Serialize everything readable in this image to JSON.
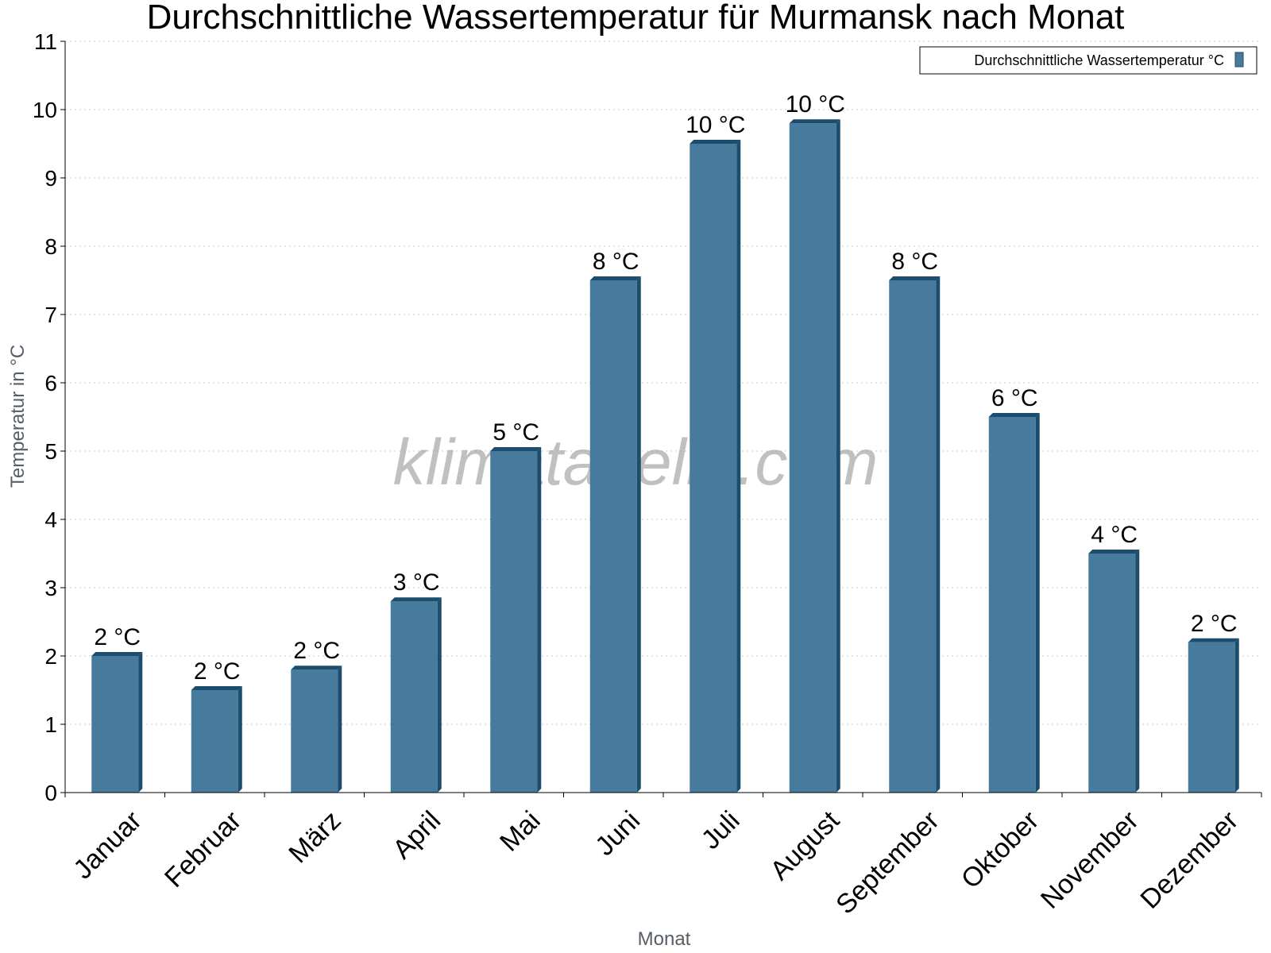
{
  "chart_data": {
    "type": "bar",
    "title": "Durchschnittliche Wassertemperatur für Murmansk nach Monat",
    "xlabel": "Monat",
    "ylabel": "Temperatur in °C",
    "categories": [
      "Januar",
      "Februar",
      "März",
      "April",
      "Mai",
      "Juni",
      "Juli",
      "August",
      "September",
      "Oktober",
      "November",
      "Dezember"
    ],
    "series": [
      {
        "name": "Durchschnittliche Wassertemperatur °C",
        "values": [
          2.0,
          1.5,
          1.8,
          2.8,
          5.0,
          7.5,
          9.5,
          9.8,
          7.5,
          5.5,
          3.5,
          2.2
        ],
        "labels": [
          "2 °C",
          "2 °C",
          "2 °C",
          "3 °C",
          "5 °C",
          "8 °C",
          "10 °C",
          "10 °C",
          "8 °C",
          "6 °C",
          "4 °C",
          "2 °C"
        ]
      }
    ],
    "ylim": [
      0,
      11
    ],
    "yticks": [
      "0",
      "1",
      "2",
      "3",
      "4",
      "5",
      "6",
      "7",
      "8",
      "9",
      "10",
      "11"
    ],
    "grid": true,
    "legend": {
      "position": "top-right"
    },
    "colors": {
      "bar_front": "#467b9d",
      "bar_side": "#1d4d6d",
      "bar_top": "#1d4d6d",
      "grid": "#c8c8c8"
    },
    "watermark": "klimatabelle.com"
  }
}
